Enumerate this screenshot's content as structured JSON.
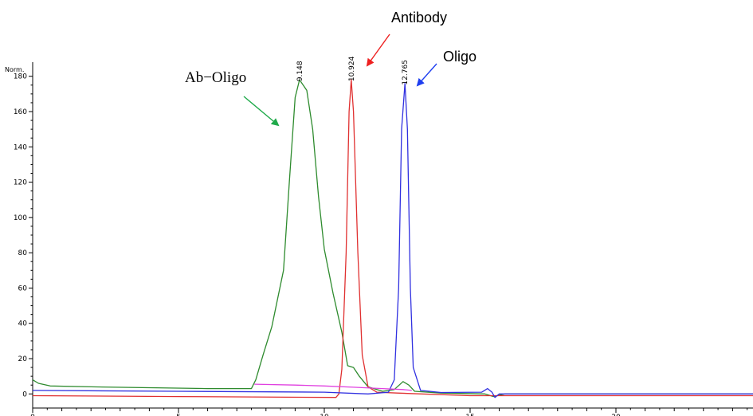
{
  "chart_data": {
    "type": "line",
    "title": "",
    "xlabel": "",
    "ylabel": "Norm.",
    "xlim": [
      0,
      24.7
    ],
    "ylim": [
      -8,
      188
    ],
    "x_ticks": [
      0,
      5,
      10,
      15,
      20
    ],
    "y_ticks": [
      0,
      20,
      40,
      60,
      80,
      100,
      120,
      140,
      160,
      180
    ],
    "grid": false,
    "legend": "none",
    "series": [
      {
        "color": "#2e8b2e",
        "points": [
          [
            0,
            8
          ],
          [
            0.2,
            6
          ],
          [
            0.6,
            4.5
          ],
          [
            2,
            4
          ],
          [
            4,
            3.5
          ],
          [
            6,
            3
          ],
          [
            7.5,
            3
          ],
          [
            7.65,
            8
          ],
          [
            7.9,
            22
          ],
          [
            8.2,
            38
          ],
          [
            8.6,
            70
          ],
          [
            8.8,
            120
          ],
          [
            9.0,
            168
          ],
          [
            9.15,
            178
          ],
          [
            9.4,
            172
          ],
          [
            9.6,
            150
          ],
          [
            9.8,
            112
          ],
          [
            10.0,
            82
          ],
          [
            10.3,
            57
          ],
          [
            10.6,
            35
          ],
          [
            10.8,
            16
          ],
          [
            11.0,
            15
          ],
          [
            11.2,
            10
          ],
          [
            11.5,
            4
          ],
          [
            12.0,
            1.5
          ],
          [
            12.4,
            2.5
          ],
          [
            12.7,
            7
          ],
          [
            12.9,
            5
          ],
          [
            13.1,
            1.5
          ],
          [
            14,
            0.5
          ],
          [
            15.5,
            0
          ],
          [
            15.8,
            -1.5
          ],
          [
            16.2,
            0
          ],
          [
            20,
            0
          ],
          [
            24.7,
            0
          ]
        ]
      },
      {
        "color": "#e03030",
        "points": [
          [
            0,
            -1
          ],
          [
            5,
            -1.5
          ],
          [
            10.4,
            -2
          ],
          [
            10.5,
            0
          ],
          [
            10.6,
            14
          ],
          [
            10.75,
            80
          ],
          [
            10.85,
            160
          ],
          [
            10.924,
            178
          ],
          [
            11.0,
            160
          ],
          [
            11.15,
            80
          ],
          [
            11.3,
            22
          ],
          [
            11.5,
            4
          ],
          [
            11.8,
            1
          ],
          [
            12.5,
            0.5
          ],
          [
            15,
            -1
          ],
          [
            20,
            -1
          ],
          [
            24.7,
            -1
          ]
        ]
      },
      {
        "color": "#3030e0",
        "points": [
          [
            0,
            2
          ],
          [
            5,
            1.5
          ],
          [
            10,
            1
          ],
          [
            11.5,
            0
          ],
          [
            12.2,
            1
          ],
          [
            12.4,
            8
          ],
          [
            12.55,
            60
          ],
          [
            12.65,
            150
          ],
          [
            12.765,
            176
          ],
          [
            12.85,
            150
          ],
          [
            12.95,
            60
          ],
          [
            13.05,
            15
          ],
          [
            13.3,
            2
          ],
          [
            14,
            0.8
          ],
          [
            15.4,
            1
          ],
          [
            15.6,
            3
          ],
          [
            15.75,
            1
          ],
          [
            15.85,
            -2
          ],
          [
            16,
            0
          ],
          [
            20,
            0
          ],
          [
            24.7,
            0
          ]
        ]
      },
      {
        "color": "#e040e0",
        "points": [
          [
            7.6,
            5.5
          ],
          [
            9,
            5
          ],
          [
            10,
            4.5
          ],
          [
            11,
            3.8
          ],
          [
            12,
            3
          ],
          [
            12.7,
            2.5
          ],
          [
            13,
            2
          ]
        ]
      }
    ],
    "peaks": [
      {
        "x": 9.148,
        "y": 178,
        "label": "9.148"
      },
      {
        "x": 10.924,
        "y": 178,
        "label": "10.924"
      },
      {
        "x": 12.765,
        "y": 176,
        "label": "12.765"
      }
    ],
    "annotations": [
      {
        "id": "ab-oligo",
        "text": "Ab−Oligo",
        "arrow_color": "#1faa4a"
      },
      {
        "id": "antibody",
        "text": "Antibody",
        "arrow_color": "#ee2020"
      },
      {
        "id": "oligo",
        "text": "Oligo",
        "arrow_color": "#1f3ff0"
      }
    ]
  }
}
